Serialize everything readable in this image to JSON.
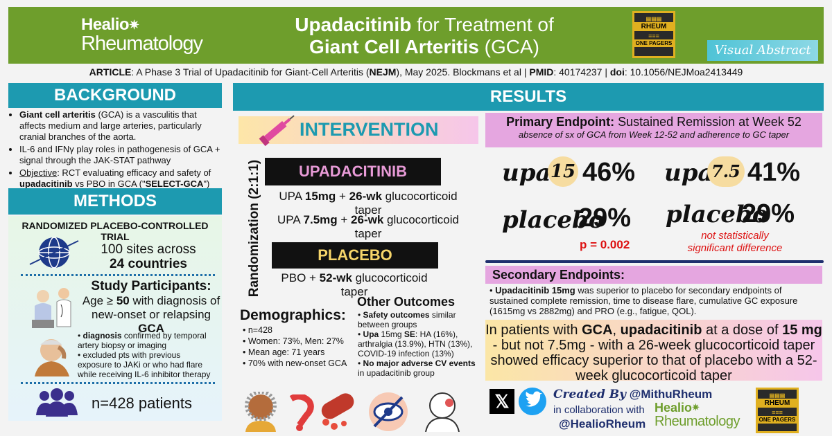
{
  "header": {
    "logo_line1": "Healio",
    "logo_line2": "Rheumatology",
    "title_drug": "Upadacitinib",
    "title_rest1": " for Treatment of",
    "title_line2_bold": "Giant Cell Arteritis",
    "title_line2_rest": " (GCA)",
    "badge_top": "RHEUM",
    "badge_bottom": "ONE PAGERS",
    "visual_abstract": "Visual Abstract"
  },
  "article": {
    "label": "ARTICLE",
    "text1": ": A Phase 3 Trial of Upadacitinib for Giant-Cell Arteritis (",
    "journal": "NEJM",
    "text2": "), May 2025. Blockmans et al | ",
    "pmid_label": "PMID",
    "pmid": ": 40174237 | ",
    "doi_label": "doi",
    "doi": ": 10.1056/NEJMoa2413449"
  },
  "background": {
    "heading": "BACKGROUND",
    "b1_bold": "Giant cell arteritis",
    "b1_rest": " (GCA) is a vasculitis that affects medium and large arteries, particularly cranial branches of the aorta.",
    "b2": "IL-6 and IFNγ play roles in pathogenesis of GCA + signal through the JAK-STAT pathway",
    "b3_label": "Objective",
    "b3_rest1": ": RCT evaluating efficacy and safety of ",
    "b3_bold": "upadacitinib",
    "b3_rest2": " vs PBO in GCA (\"",
    "b3_bold2": "SELECT-GCA",
    "b3_rest3": "\")"
  },
  "methods": {
    "heading": "METHODS",
    "trial_type": "RANDOMIZED PLACEBO-CONTROLLED TRIAL",
    "sites_line1": "100 sites across",
    "sites_line2": "24 countries",
    "participants_title": "Study Participants:",
    "age_line1": "Age ≥ ",
    "age_bold": "50",
    "age_line1b": " with diagnosis of",
    "age_line2": "new-onset or relapsing ",
    "age_bold2": "GCA",
    "diag_bold": "diagnosis",
    "diag_rest": " confirmed by temporal artery biopsy or imaging",
    "excl": "excluded pts with previous exposure to JAKi or who had flare while receiving IL-6 inhibitor therapy",
    "n_patients": "n=428 patients"
  },
  "intervention": {
    "heading": "INTERVENTION",
    "randomization": "Randomization (2:1:1)",
    "arm1_label": "UPADACITINIB",
    "arm1_a_pre": "UPA ",
    "arm1_a_dose": "15mg",
    "arm1_a_mid": " + ",
    "arm1_a_wk": "26-wk",
    "arm1_a_post": " glucocorticoid taper",
    "arm1_b_pre": "UPA ",
    "arm1_b_dose": "7.5mg",
    "arm1_b_mid": " + ",
    "arm1_b_wk": "26-wk",
    "arm1_b_post": " glucocorticoid taper",
    "arm2_label": "PLACEBO",
    "arm2_pre": "PBO + ",
    "arm2_wk": "52-wk",
    "arm2_post": " glucocorticoid taper"
  },
  "demographics": {
    "heading": "Demographics:",
    "items": [
      "n=428",
      "Women: 73%, Men: 27%",
      "Mean age: 71 years",
      "70% with new-onset GCA"
    ]
  },
  "other_outcomes": {
    "heading": "Other Outcomes",
    "o1_bold": "Safety outcomes",
    "o1_rest": " similar between groups",
    "o2_bold": "Upa",
    "o2_mid": " 15mg ",
    "o2_bold2": "SE",
    "o2_rest": ": HA (16%), arthralgia (13.9%), HTN (13%), COVID-19 infection (13%)",
    "o3_bold": "No major adverse CV events",
    "o3_rest": " in upadacitinib group"
  },
  "results": {
    "heading": "RESULTS",
    "primary_bold": "Primary Endpoint:",
    "primary_rest": " Sustained Remission at Week 52",
    "primary_sub": "absence of sx of GCA from Week 12-52 and adherence to GC taper",
    "left_upa": "upa",
    "left_dose": "15",
    "left_upa_pct": "46%",
    "left_placebo": "placebo",
    "left_placebo_pct": "29%",
    "left_p": "p = 0.002",
    "right_upa": "upa",
    "right_dose": "7.5",
    "right_upa_pct": "41%",
    "right_placebo": "placebo",
    "right_placebo_pct": "29%",
    "right_ns_1": "not statistically",
    "right_ns_2": "significant difference",
    "secondary_heading": "Secondary Endpoints:",
    "secondary_bold": "Upadacitinib 15mg",
    "secondary_rest": " was superior to placebo for secondary endpoints of sustained complete remission, time to disease flare, cumulative GC exposure (1615mg vs 2882mg) and PRO (e.g., fatigue, QOL).",
    "summary_1": "In patients with ",
    "summary_b1": "GCA",
    "summary_2": ", ",
    "summary_b2": "upadacitinib",
    "summary_3": " at a dose of ",
    "summary_b3": "15 mg",
    "summary_4": " - but not 7.5mg - with a 26-week glucocorticoid taper showed efficacy superior to that of placebo with a 52-week glucocorticoid taper"
  },
  "footer": {
    "created_by": "Created By",
    "author": "@MithuRheum",
    "collab": "in collaboration with",
    "partner": "@HealioRheum",
    "logo_line1": "Healio",
    "logo_line2": "Rheumatology",
    "badge_top": "RHEUM",
    "badge_bottom": "ONE PAGERS"
  },
  "colors": {
    "header_green": "#6e9e2c",
    "section_teal": "#1d9ab0",
    "endpoint_pink": "#e5a6e0",
    "badge_gold": "#e0b020"
  }
}
